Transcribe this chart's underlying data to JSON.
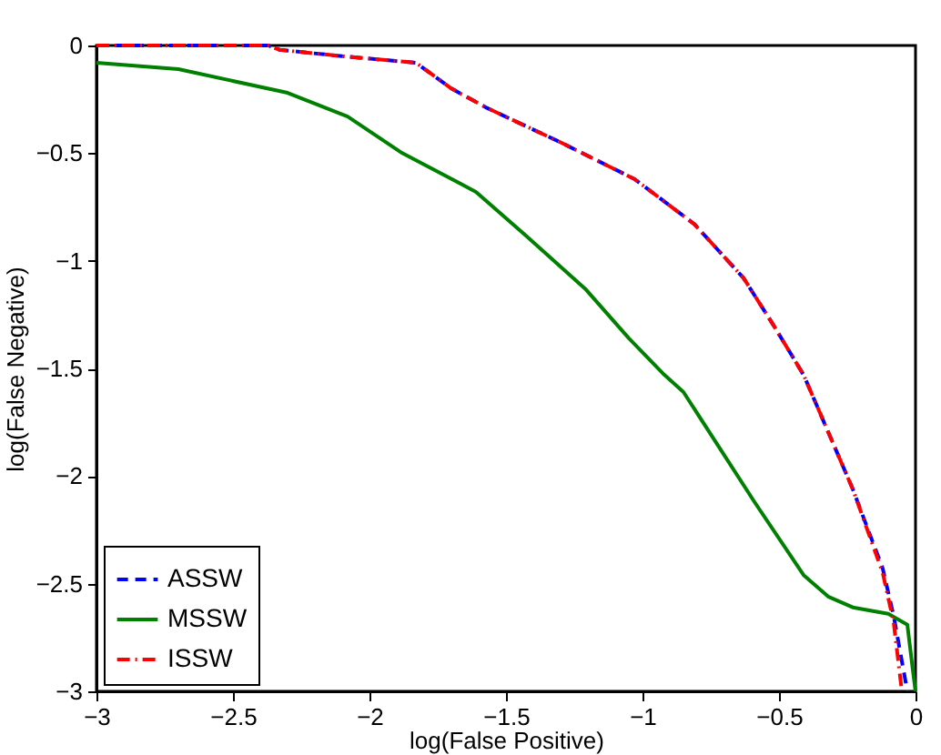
{
  "chart_data": {
    "type": "line",
    "xlabel": "log(False Positive)",
    "ylabel": "log(False Negative)",
    "xlim": [
      -3,
      0
    ],
    "ylim": [
      -3,
      0
    ],
    "xticks": [
      -3,
      -2.5,
      -2,
      -1.5,
      -1,
      -0.5,
      0
    ],
    "yticks": [
      -3,
      -2.5,
      -2,
      -1.5,
      -1,
      -0.5,
      0
    ],
    "grid": false,
    "legend": "bottom left",
    "marker": "none",
    "series": [
      {
        "name": "ASSW",
        "color": "#0000ff",
        "line_style": "dashed",
        "x": [
          -3,
          -2.37,
          -2.33,
          -2.1,
          -1.83,
          -1.7,
          -1.57,
          -1.3,
          -1.03,
          -0.81,
          -0.63,
          -0.52,
          -0.41,
          -0.23,
          -0.12,
          -0.08,
          -0.03
        ],
        "values": [
          0,
          0,
          -0.02,
          -0.05,
          -0.08,
          -0.2,
          -0.29,
          -0.45,
          -0.62,
          -0.83,
          -1.08,
          -1.3,
          -1.53,
          -2.06,
          -2.43,
          -2.65,
          -3
        ]
      },
      {
        "name": "MSSW",
        "color": "#008000",
        "line_style": "solid",
        "x": [
          -3,
          -2.7,
          -2.3,
          -2.08,
          -1.88,
          -1.61,
          -1.43,
          -1.21,
          -1.05,
          -0.92,
          -0.85,
          -0.59,
          -0.41,
          -0.32,
          -0.23,
          -0.1,
          -0.03,
          -0.01,
          0
        ],
        "values": [
          -0.08,
          -0.11,
          -0.22,
          -0.33,
          -0.5,
          -0.68,
          -0.88,
          -1.13,
          -1.36,
          -1.53,
          -1.61,
          -2.12,
          -2.46,
          -2.56,
          -2.61,
          -2.64,
          -2.69,
          -2.9,
          -3
        ]
      },
      {
        "name": "ISSW",
        "color": "#ff0000",
        "line_style": "dashdot",
        "x": [
          -3,
          -2.37,
          -2.33,
          -2.1,
          -1.83,
          -1.7,
          -1.57,
          -1.3,
          -1.03,
          -0.81,
          -0.63,
          -0.52,
          -0.41,
          -0.23,
          -0.12,
          -0.08,
          -0.05
        ],
        "values": [
          0,
          0,
          -0.02,
          -0.05,
          -0.08,
          -0.2,
          -0.29,
          -0.45,
          -0.62,
          -0.83,
          -1.08,
          -1.3,
          -1.53,
          -2.06,
          -2.45,
          -2.68,
          -3
        ]
      }
    ]
  }
}
